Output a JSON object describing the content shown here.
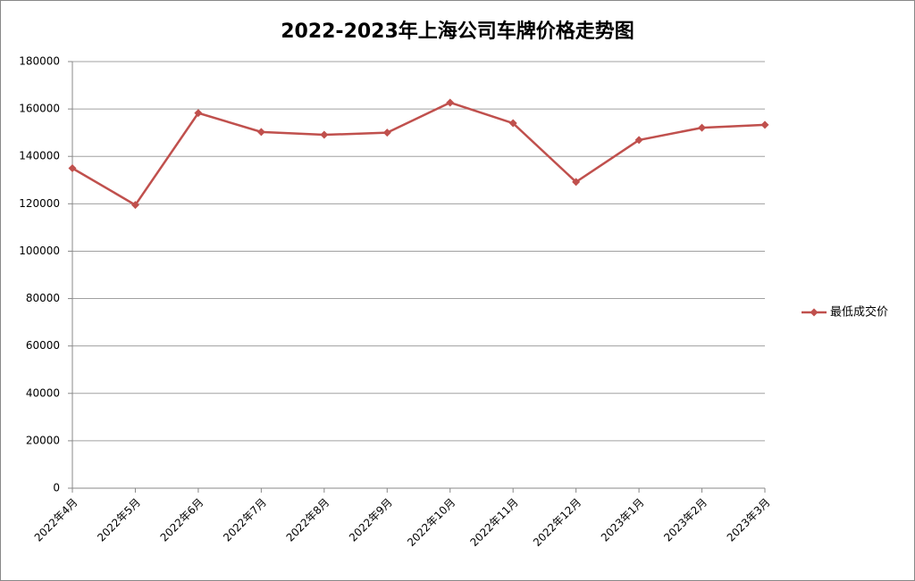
{
  "chart_data": {
    "type": "line",
    "title": "2022-2023年上海公司车牌价格走势图",
    "categories": [
      "2022年4月",
      "2022年5月",
      "2022年6月",
      "2022年7月",
      "2022年8月",
      "2022年9月",
      "2022年10月",
      "2022年11月",
      "2022年12月",
      "2023年1月",
      "2023年2月",
      "2023年3月"
    ],
    "series": [
      {
        "name": "最低成交价",
        "color": "#c0504d",
        "values": [
          135000,
          119500,
          158300,
          150300,
          149100,
          150000,
          162700,
          154000,
          129200,
          146900,
          152100,
          153300
        ]
      }
    ],
    "ylim": [
      0,
      180000
    ],
    "yticks": [
      0,
      20000,
      40000,
      60000,
      80000,
      100000,
      120000,
      140000,
      160000,
      180000
    ],
    "grid": true,
    "legend": "right"
  }
}
